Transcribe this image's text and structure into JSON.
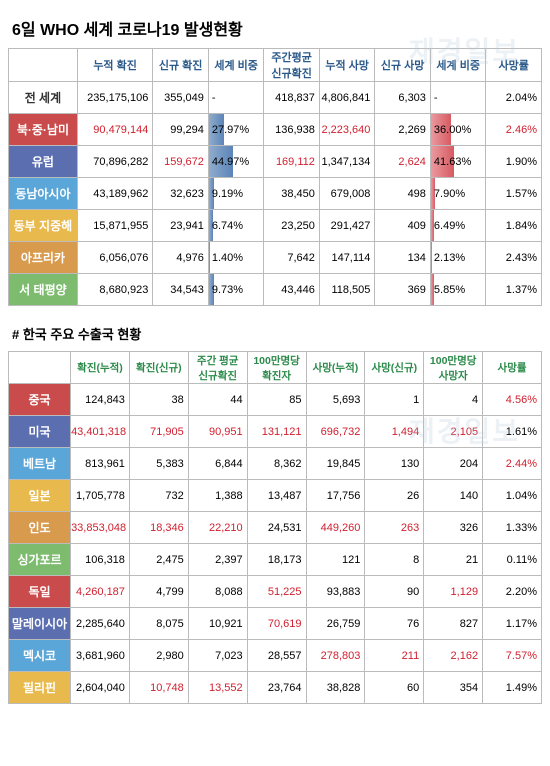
{
  "title": "6일    WHO 세계 코로나19 발생현황",
  "watermark": "재경일보",
  "table1": {
    "headers": [
      "",
      "누적 확진",
      "신규 확진",
      "세계 비중",
      "주간평균\n신규확진",
      "누적 사망",
      "신규 사망",
      "세계 비중",
      "사망률"
    ],
    "rows": [
      {
        "region": "전 세계",
        "bg": "#ffffff",
        "fg": "#333333",
        "cum": "235,175,106",
        "new": "355,049",
        "pct1": "-",
        "wk": "418,837",
        "cumD": "4,806,841",
        "newD": "6,303",
        "pct2": "-",
        "death": "2.04%",
        "redCols": [],
        "bar1": 0,
        "bar2": 0
      },
      {
        "region": "북·중·남미",
        "bg": "#c94b4b",
        "fg": "#ffffff",
        "cum": "90,479,144",
        "new": "99,294",
        "pct1": "27.97%",
        "wk": "136,938",
        "cumD": "2,223,640",
        "newD": "2,269",
        "pct2": "36.00%",
        "death": "2.46%",
        "redCols": [
          "cum",
          "cumD",
          "death"
        ],
        "bar1": 27.97,
        "bar2": 36.0
      },
      {
        "region": "유럽",
        "bg": "#5b6fb0",
        "fg": "#ffffff",
        "cum": "70,896,282",
        "new": "159,672",
        "pct1": "44.97%",
        "wk": "169,112",
        "cumD": "1,347,134",
        "newD": "2,624",
        "pct2": "41.63%",
        "death": "1.90%",
        "redCols": [
          "new",
          "wk",
          "newD"
        ],
        "bar1": 44.97,
        "bar2": 41.63
      },
      {
        "region": "동남아시아",
        "bg": "#5aa6d8",
        "fg": "#ffffff",
        "cum": "43,189,962",
        "new": "32,623",
        "pct1": "9.19%",
        "wk": "38,450",
        "cumD": "679,008",
        "newD": "498",
        "pct2": "7.90%",
        "death": "1.57%",
        "redCols": [],
        "bar1": 9.19,
        "bar2": 7.9
      },
      {
        "region": "동부 지중해",
        "bg": "#e8b94d",
        "fg": "#ffffff",
        "cum": "15,871,955",
        "new": "23,941",
        "pct1": "6.74%",
        "wk": "23,250",
        "cumD": "291,427",
        "newD": "409",
        "pct2": "6.49%",
        "death": "1.84%",
        "redCols": [],
        "bar1": 6.74,
        "bar2": 6.49
      },
      {
        "region": "아프리카",
        "bg": "#d89a4d",
        "fg": "#ffffff",
        "cum": "6,056,076",
        "new": "4,976",
        "pct1": "1.40%",
        "wk": "7,642",
        "cumD": "147,114",
        "newD": "134",
        "pct2": "2.13%",
        "death": "2.43%",
        "redCols": [],
        "bar1": 1.4,
        "bar2": 2.13
      },
      {
        "region": "서 태평양",
        "bg": "#7dbb6f",
        "fg": "#ffffff",
        "cum": "8,680,923",
        "new": "34,543",
        "pct1": "9.73%",
        "wk": "43,446",
        "cumD": "118,505",
        "newD": "369",
        "pct2": "5.85%",
        "death": "1.37%",
        "redCols": [],
        "bar1": 9.73,
        "bar2": 5.85
      }
    ]
  },
  "subtitle": "# 한국 주요 수출국 현황",
  "table2": {
    "headers": [
      "",
      "확진(누적)",
      "확진(신규)",
      "주간 평균\n신규확진",
      "100만명당\n확진자",
      "사망(누적)",
      "사망(신규)",
      "100만명당\n사망자",
      "사망률"
    ],
    "rows": [
      {
        "c": "중국",
        "bg": "#c94b4b",
        "v": [
          "124,843",
          "38",
          "44",
          "85",
          "5,693",
          "1",
          "4",
          "4.56%"
        ],
        "red": [
          7
        ]
      },
      {
        "c": "미국",
        "bg": "#5b6fb0",
        "v": [
          "43,401,318",
          "71,905",
          "90,951",
          "131,121",
          "696,732",
          "1,494",
          "2,105",
          "1.61%"
        ],
        "red": [
          0,
          1,
          2,
          3,
          4,
          5,
          6
        ]
      },
      {
        "c": "베트남",
        "bg": "#5aa6d8",
        "v": [
          "813,961",
          "5,383",
          "6,844",
          "8,362",
          "19,845",
          "130",
          "204",
          "2.44%"
        ],
        "red": [
          7
        ]
      },
      {
        "c": "일본",
        "bg": "#e8b94d",
        "v": [
          "1,705,778",
          "732",
          "1,388",
          "13,487",
          "17,756",
          "26",
          "140",
          "1.04%"
        ],
        "red": []
      },
      {
        "c": "인도",
        "bg": "#d89a4d",
        "v": [
          "33,853,048",
          "18,346",
          "22,210",
          "24,531",
          "449,260",
          "263",
          "326",
          "1.33%"
        ],
        "red": [
          0,
          1,
          2,
          4,
          5
        ]
      },
      {
        "c": "싱가포르",
        "bg": "#7dbb6f",
        "v": [
          "106,318",
          "2,475",
          "2,397",
          "18,173",
          "121",
          "8",
          "21",
          "0.11%"
        ],
        "red": []
      },
      {
        "c": "독일",
        "bg": "#c94b4b",
        "v": [
          "4,260,187",
          "4,799",
          "8,088",
          "51,225",
          "93,883",
          "90",
          "1,129",
          "2.20%"
        ],
        "red": [
          0,
          3,
          6
        ]
      },
      {
        "c": "말레이시아",
        "bg": "#5b6fb0",
        "v": [
          "2,285,640",
          "8,075",
          "10,921",
          "70,619",
          "26,759",
          "76",
          "827",
          "1.17%"
        ],
        "red": [
          3
        ]
      },
      {
        "c": "멕시코",
        "bg": "#5aa6d8",
        "v": [
          "3,681,960",
          "2,980",
          "7,023",
          "28,557",
          "278,803",
          "211",
          "2,162",
          "7.57%"
        ],
        "red": [
          4,
          5,
          6,
          7
        ]
      },
      {
        "c": "필리핀",
        "bg": "#e8b94d",
        "v": [
          "2,604,040",
          "10,748",
          "13,552",
          "23,764",
          "38,828",
          "60",
          "354",
          "1.49%"
        ],
        "red": [
          1,
          2
        ]
      }
    ]
  }
}
